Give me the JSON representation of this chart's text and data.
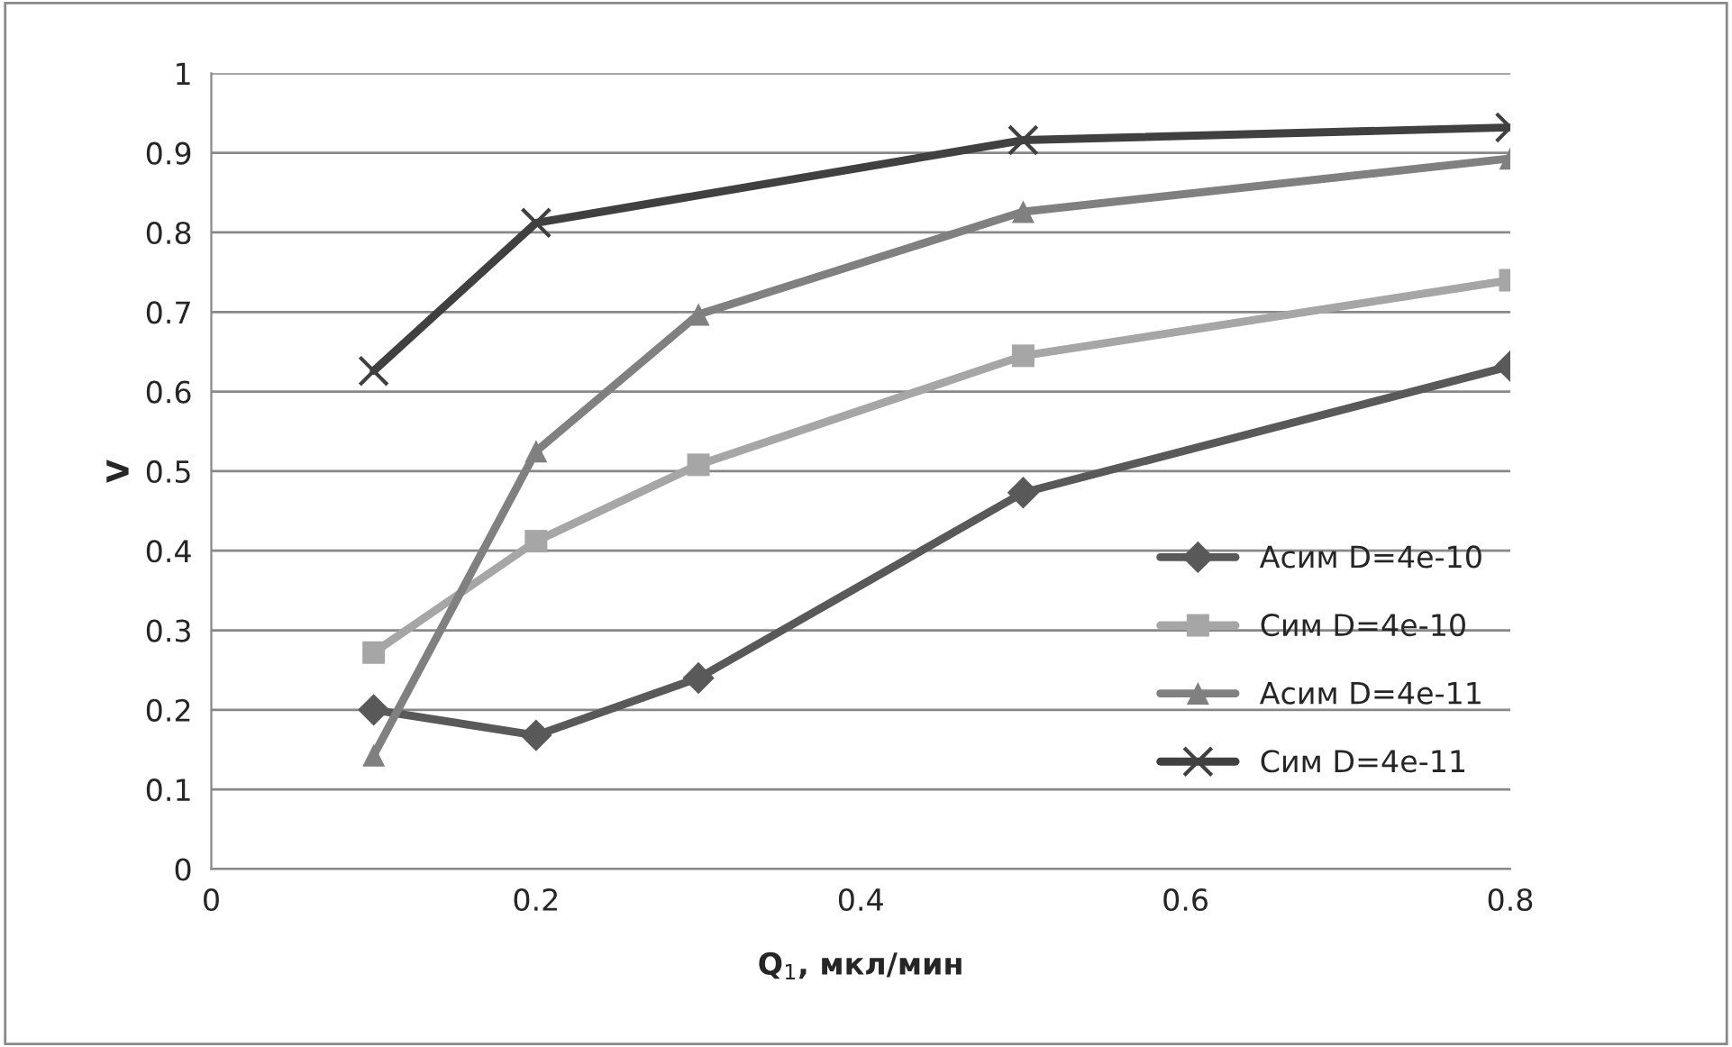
{
  "chart_data": {
    "type": "line",
    "xlabel": "Q$_{1}$, мкл/мин",
    "ylabel": "V",
    "xlim": [
      0,
      0.8
    ],
    "xticks": [
      0,
      0.2,
      0.4,
      0.6,
      0.8
    ],
    "ylim": [
      0,
      1
    ],
    "yticks": [
      0,
      0.1,
      0.2,
      0.3,
      0.4,
      0.5,
      0.6,
      0.7,
      0.8,
      0.9,
      1
    ],
    "grid": "y",
    "legend": "bottom right",
    "line_style": "solid",
    "series": [
      {
        "name": "Асим D=4e-10",
        "color": "#595959",
        "marker": "diamond",
        "x": [
          0.1,
          0.2,
          0.3,
          0.5,
          0.8
        ],
        "values": [
          0.2,
          0.168,
          0.24,
          0.473,
          0.632
        ]
      },
      {
        "name": "Сим D=4e-10",
        "color": "#a6a6a6",
        "marker": "square",
        "x": [
          0.1,
          0.2,
          0.3,
          0.5,
          0.8
        ],
        "values": [
          0.272,
          0.412,
          0.508,
          0.645,
          0.74
        ]
      },
      {
        "name": "Асим D=4e-11",
        "color": "#808080",
        "marker": "triangle",
        "x": [
          0.1,
          0.2,
          0.3,
          0.5,
          0.8
        ],
        "values": [
          0.143,
          0.525,
          0.697,
          0.826,
          0.893
        ]
      },
      {
        "name": "Сим D=4e-11",
        "color": "#404040",
        "marker": "cross",
        "x": [
          0.1,
          0.2,
          0.5,
          0.8
        ],
        "values": [
          0.626,
          0.812,
          0.916,
          0.932
        ]
      }
    ]
  }
}
